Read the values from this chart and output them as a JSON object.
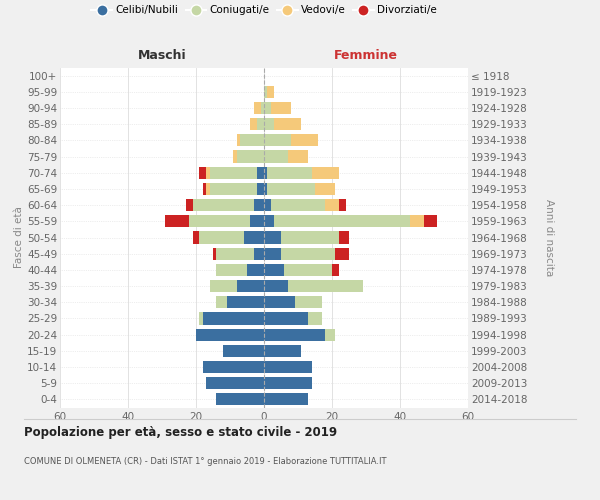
{
  "age_groups": [
    "0-4",
    "5-9",
    "10-14",
    "15-19",
    "20-24",
    "25-29",
    "30-34",
    "35-39",
    "40-44",
    "45-49",
    "50-54",
    "55-59",
    "60-64",
    "65-69",
    "70-74",
    "75-79",
    "80-84",
    "85-89",
    "90-94",
    "95-99",
    "100+"
  ],
  "birth_years": [
    "2014-2018",
    "2009-2013",
    "2004-2008",
    "1999-2003",
    "1994-1998",
    "1989-1993",
    "1984-1988",
    "1979-1983",
    "1974-1978",
    "1969-1973",
    "1964-1968",
    "1959-1963",
    "1954-1958",
    "1949-1953",
    "1944-1948",
    "1939-1943",
    "1934-1938",
    "1929-1933",
    "1924-1928",
    "1919-1923",
    "≤ 1918"
  ],
  "colors": {
    "celibi": "#3b6fa0",
    "coniugati": "#c5d7a5",
    "vedovi": "#f5c97a",
    "divorziati": "#cc2222"
  },
  "males": {
    "celibi": [
      14,
      17,
      18,
      12,
      20,
      18,
      11,
      8,
      5,
      3,
      6,
      4,
      3,
      2,
      2,
      0,
      0,
      0,
      0,
      0,
      0
    ],
    "coniugati": [
      0,
      0,
      0,
      0,
      0,
      1,
      3,
      8,
      9,
      11,
      13,
      18,
      18,
      14,
      14,
      8,
      7,
      2,
      1,
      0,
      0
    ],
    "vedovi": [
      0,
      0,
      0,
      0,
      0,
      0,
      0,
      0,
      0,
      0,
      0,
      0,
      0,
      1,
      1,
      1,
      1,
      2,
      2,
      0,
      0
    ],
    "divorziati": [
      0,
      0,
      0,
      0,
      0,
      0,
      0,
      0,
      0,
      1,
      2,
      7,
      2,
      1,
      2,
      0,
      0,
      0,
      0,
      0,
      0
    ]
  },
  "females": {
    "celibi": [
      13,
      14,
      14,
      11,
      18,
      13,
      9,
      7,
      6,
      5,
      5,
      3,
      2,
      1,
      1,
      0,
      0,
      0,
      0,
      0,
      0
    ],
    "coniugati": [
      0,
      0,
      0,
      0,
      3,
      4,
      8,
      22,
      14,
      16,
      17,
      40,
      16,
      14,
      13,
      7,
      8,
      3,
      2,
      1,
      0
    ],
    "vedovi": [
      0,
      0,
      0,
      0,
      0,
      0,
      0,
      0,
      0,
      0,
      0,
      4,
      4,
      6,
      8,
      6,
      8,
      8,
      6,
      2,
      0
    ],
    "divorziati": [
      0,
      0,
      0,
      0,
      0,
      0,
      0,
      0,
      2,
      4,
      3,
      4,
      2,
      0,
      0,
      0,
      0,
      0,
      0,
      0,
      0
    ]
  },
  "title_main": "Popolazione per età, sesso e stato civile - 2019",
  "title_sub": "COMUNE DI OLMENETA (CR) - Dati ISTAT 1° gennaio 2019 - Elaborazione TUTTITALIA.IT",
  "ylabel_left": "Fasce di età",
  "ylabel_right": "Anni di nascita",
  "xlabel_left": "Maschi",
  "xlabel_right": "Femmine",
  "xlim": 60,
  "bg_color": "#f0f0f0",
  "plot_bg": "#ffffff",
  "legend_labels": [
    "Celibi/Nubili",
    "Coniugati/e",
    "Vedovi/e",
    "Divorziati/e"
  ]
}
